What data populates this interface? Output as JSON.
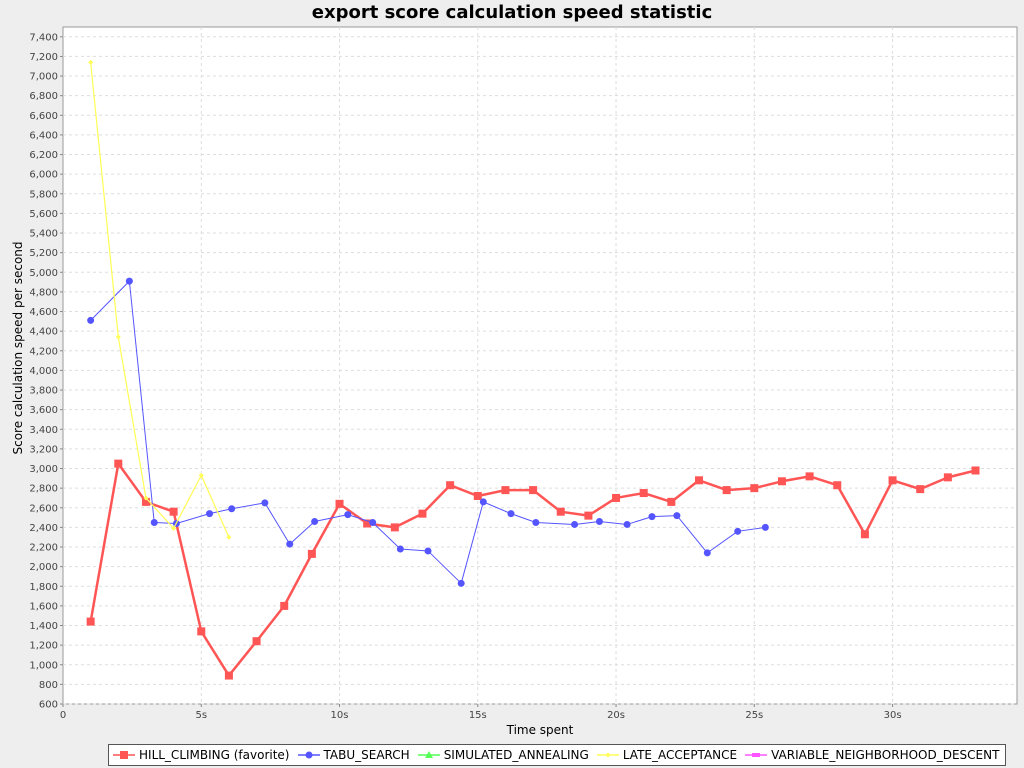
{
  "chart_data": {
    "type": "line",
    "title": "export score calculation speed statistic",
    "xlabel": "Time spent",
    "ylabel": "Score calculation speed per second",
    "xlim": [
      0,
      34.5
    ],
    "ylim": [
      600,
      7500
    ],
    "x_ticks": [
      0,
      5,
      10,
      15,
      20,
      25,
      30
    ],
    "x_tick_labels": [
      "0",
      "5s",
      "10s",
      "15s",
      "20s",
      "25s",
      "30s"
    ],
    "y_ticks": [
      600,
      800,
      1000,
      1200,
      1400,
      1600,
      1800,
      2000,
      2200,
      2400,
      2600,
      2800,
      3000,
      3200,
      3400,
      3600,
      3800,
      4000,
      4200,
      4400,
      4600,
      4800,
      5000,
      5200,
      5400,
      5600,
      5800,
      6000,
      6200,
      6400,
      6600,
      6800,
      7000,
      7200,
      7400
    ],
    "y_tick_labels": [
      "600",
      "800",
      "1,000",
      "1,200",
      "1,400",
      "1,600",
      "1,800",
      "2,000",
      "2,200",
      "2,400",
      "2,600",
      "2,800",
      "3,000",
      "3,200",
      "3,400",
      "3,600",
      "3,800",
      "4,000",
      "4,200",
      "4,400",
      "4,600",
      "4,800",
      "5,000",
      "5,200",
      "5,400",
      "5,600",
      "5,800",
      "6,000",
      "6,200",
      "6,400",
      "6,600",
      "6,800",
      "7,000",
      "7,200",
      "7,400"
    ],
    "grid": true,
    "legend_position": "bottom",
    "series": [
      {
        "name": "HILL_CLIMBING (favorite)",
        "color": "#ff5555",
        "marker": "square",
        "points": [
          [
            1.0,
            1440
          ],
          [
            2.0,
            3050
          ],
          [
            3.0,
            2660
          ],
          [
            4.0,
            2560
          ],
          [
            5.0,
            1340
          ],
          [
            6.0,
            890
          ],
          [
            7.0,
            1240
          ],
          [
            8.0,
            1600
          ],
          [
            9.0,
            2130
          ],
          [
            10.0,
            2640
          ],
          [
            11.0,
            2440
          ],
          [
            12.0,
            2400
          ],
          [
            13.0,
            2540
          ],
          [
            14.0,
            2830
          ],
          [
            15.0,
            2720
          ],
          [
            16.0,
            2780
          ],
          [
            17.0,
            2780
          ],
          [
            18.0,
            2560
          ],
          [
            19.0,
            2520
          ],
          [
            20.0,
            2700
          ],
          [
            21.0,
            2750
          ],
          [
            22.0,
            2660
          ],
          [
            23.0,
            2880
          ],
          [
            24.0,
            2780
          ],
          [
            25.0,
            2800
          ],
          [
            26.0,
            2870
          ],
          [
            27.0,
            2920
          ],
          [
            28.0,
            2830
          ],
          [
            29.0,
            2330
          ],
          [
            30.0,
            2880
          ],
          [
            31.0,
            2790
          ],
          [
            32.0,
            2910
          ],
          [
            33.0,
            2980
          ]
        ]
      },
      {
        "name": "TABU_SEARCH",
        "color": "#5555ff",
        "marker": "circle",
        "points": [
          [
            1.0,
            4510
          ],
          [
            2.4,
            4910
          ],
          [
            3.3,
            2450
          ],
          [
            4.1,
            2440
          ],
          [
            5.3,
            2540
          ],
          [
            6.1,
            2590
          ],
          [
            7.3,
            2650
          ],
          [
            8.2,
            2230
          ],
          [
            9.1,
            2460
          ],
          [
            10.3,
            2530
          ],
          [
            11.2,
            2450
          ],
          [
            12.2,
            2180
          ],
          [
            13.2,
            2160
          ],
          [
            14.4,
            1830
          ],
          [
            15.2,
            2660
          ],
          [
            16.2,
            2540
          ],
          [
            17.1,
            2450
          ],
          [
            18.5,
            2430
          ],
          [
            19.4,
            2460
          ],
          [
            20.4,
            2430
          ],
          [
            21.3,
            2510
          ],
          [
            22.2,
            2520
          ],
          [
            23.3,
            2140
          ],
          [
            24.4,
            2360
          ],
          [
            25.4,
            2400
          ]
        ]
      },
      {
        "name": "SIMULATED_ANNEALING",
        "color": "#55ff55",
        "marker": "triangle",
        "points": []
      },
      {
        "name": "LATE_ACCEPTANCE",
        "color": "#ffff55",
        "marker": "diamond",
        "points": [
          [
            1.0,
            7140
          ],
          [
            2.0,
            4340
          ],
          [
            3.0,
            2700
          ],
          [
            4.0,
            2390
          ],
          [
            5.0,
            2930
          ],
          [
            6.0,
            2300
          ]
        ]
      },
      {
        "name": "VARIABLE_NEIGHBORHOOD_DESCENT",
        "color": "#ff55ff",
        "marker": "rect",
        "points": []
      }
    ]
  }
}
